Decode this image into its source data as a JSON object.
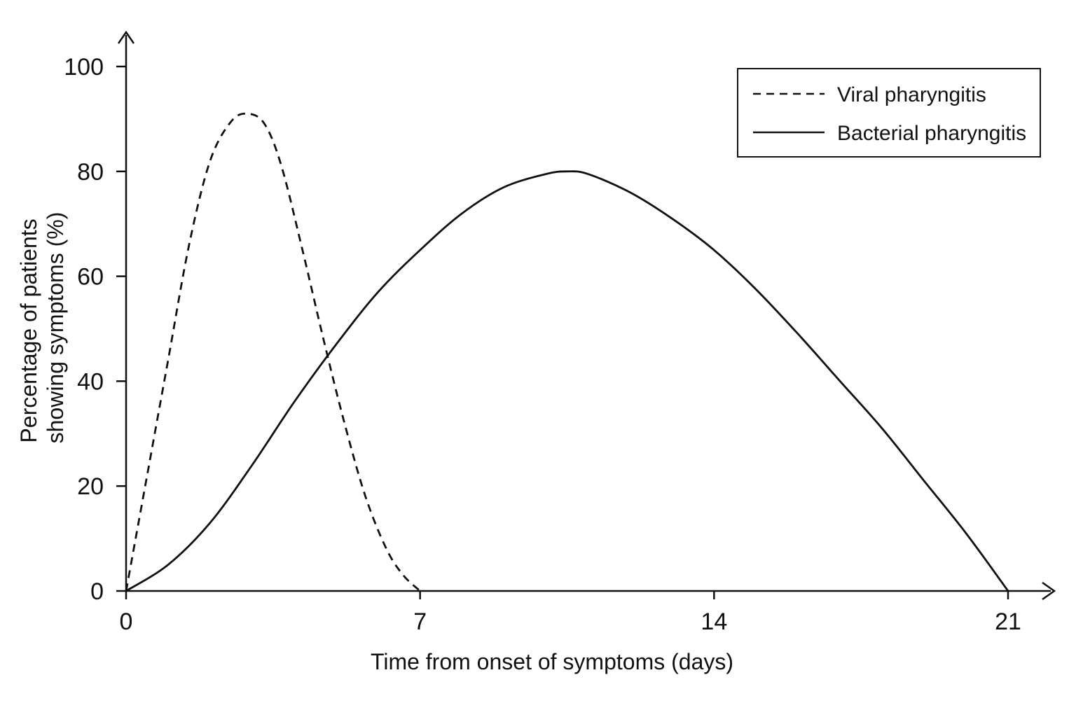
{
  "chart_data": {
    "type": "line",
    "title": "",
    "xlabel": "Time from onset of symptoms (days)",
    "ylabel_lines": [
      "Percentage of patients",
      "showing symptoms (%)"
    ],
    "xlim": [
      0,
      21
    ],
    "ylim": [
      0,
      100
    ],
    "x_ticks": [
      0,
      7,
      14,
      21
    ],
    "x_tick_labels": [
      "0",
      "7",
      "14",
      "21"
    ],
    "y_ticks": [
      0,
      20,
      40,
      60,
      80,
      100
    ],
    "y_tick_labels": [
      "0",
      "20",
      "40",
      "60",
      "80",
      "100"
    ],
    "grid": false,
    "legend_position": "top-right",
    "series": [
      {
        "name": "Viral pharyngitis",
        "line_style": "dashed",
        "color": "#111111",
        "x": [
          0,
          0.5,
          1,
          1.5,
          2,
          2.5,
          2.9,
          3.3,
          3.7,
          4.2,
          4.7,
          5.2,
          5.7,
          6.2,
          6.6,
          7
        ],
        "y": [
          0,
          22,
          44,
          66,
          82,
          89.5,
          91,
          89,
          81,
          65,
          48,
          32,
          18,
          8,
          3,
          0
        ]
      },
      {
        "name": "Bacterial pharyngitis",
        "line_style": "solid",
        "color": "#111111",
        "x": [
          0,
          1,
          2,
          3,
          4,
          5,
          6,
          7,
          8,
          9,
          10,
          10.5,
          11,
          12,
          13,
          14,
          15,
          16,
          17,
          18,
          19,
          20,
          21
        ],
        "y": [
          0,
          5,
          13,
          24,
          36,
          47,
          57,
          65,
          72,
          77,
          79.5,
          80,
          79.5,
          76,
          71,
          65,
          57.5,
          49,
          40,
          31,
          21,
          11,
          0
        ]
      }
    ]
  }
}
